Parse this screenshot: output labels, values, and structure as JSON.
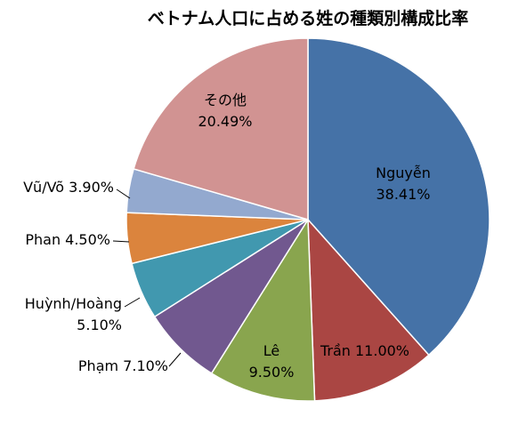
{
  "chart_data": {
    "type": "pie",
    "title": "ベトナム人口に占める姓の種類別構成比率",
    "slices": [
      {
        "label": "Nguyễn",
        "value": 38.41,
        "text": "38.41%",
        "color": "#4572a7"
      },
      {
        "label": "Trần",
        "value": 11.0,
        "text": "11.00%",
        "color": "#aa4643"
      },
      {
        "label": "Lê",
        "value": 9.5,
        "text": "9.50%",
        "color": "#89a54e"
      },
      {
        "label": "Phạm",
        "value": 7.1,
        "text": "7.10%",
        "color": "#71588f"
      },
      {
        "label": "Huỳnh/Hoàng",
        "value": 5.1,
        "text": "5.10%",
        "color": "#4198af"
      },
      {
        "label": "Phan",
        "value": 4.5,
        "text": "4.50%",
        "color": "#db843d"
      },
      {
        "label": "Vũ/Võ",
        "value": 3.9,
        "text": "3.90%",
        "color": "#93a9cf"
      },
      {
        "label": "その他",
        "value": 20.49,
        "text": "20.49%",
        "color": "#d19392"
      }
    ]
  }
}
